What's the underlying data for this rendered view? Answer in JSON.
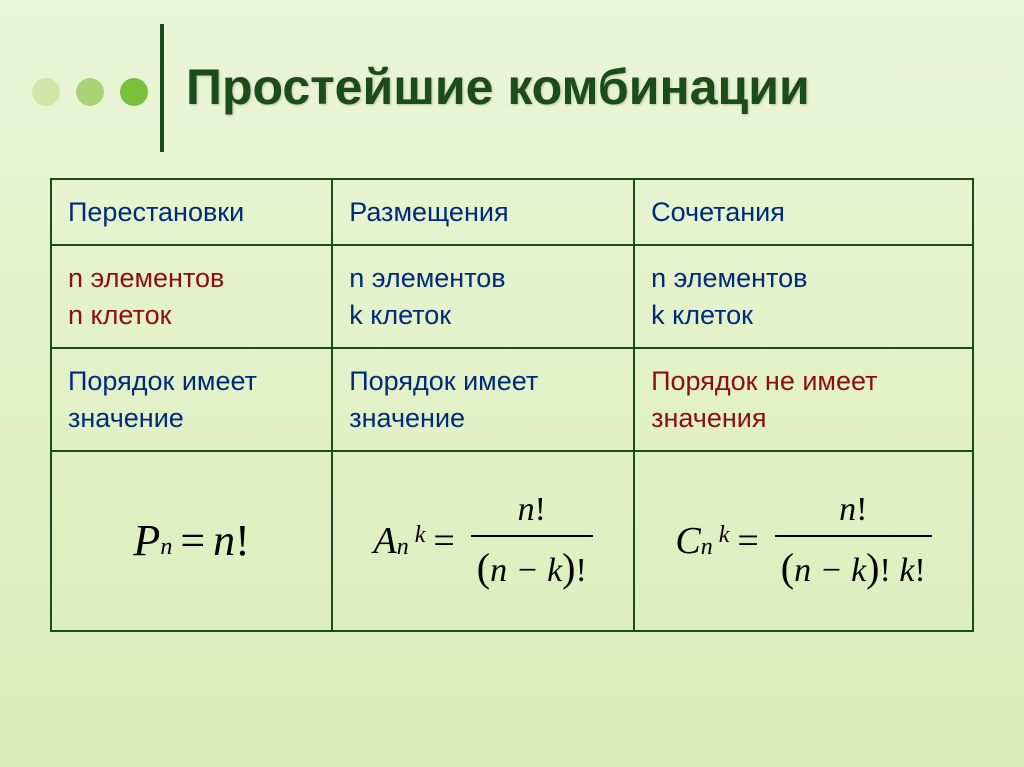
{
  "title": "Простейшие комбинации",
  "dots": {
    "colors": [
      "#cfe6a8",
      "#a9d378",
      "#7abf3e"
    ]
  },
  "table": {
    "border_color": "#1a4d1a",
    "headers": [
      "Перестановки",
      "Размещения",
      "Сочетания"
    ],
    "header_color": "#002a7a",
    "row1": {
      "col1_lines": [
        "n элементов",
        "n клеток"
      ],
      "col1_color": "#8b0f0f",
      "col2_lines": [
        "n элементов",
        "k клеток"
      ],
      "col2_color": "#002a7a",
      "col3_lines": [
        "n элементов",
        "k клеток"
      ],
      "col3_color": "#002a7a"
    },
    "row2": {
      "col1": "Порядок имеет значение",
      "col1_color": "#002a7a",
      "col2": "Порядок имеет значение",
      "col2_color": "#002a7a",
      "col3": "Порядок не имеет значения",
      "col3_color": "#8b0f0f"
    },
    "formulas": {
      "permutation": {
        "symbol": "P",
        "sub": "n",
        "equals": "n!",
        "latex": "P_n = n!"
      },
      "arrangement": {
        "symbol": "A",
        "sub": "n",
        "sup": "k",
        "numerator": "n!",
        "denominator": "(n−k)!",
        "latex": "A_n^k = n! / (n-k)!"
      },
      "combination": {
        "symbol": "C",
        "sub": "n",
        "sup": "k",
        "numerator": "n!",
        "denominator": "(n−k)! k!",
        "latex": "C_n^k = n! / ((n-k)! k!)"
      }
    }
  },
  "colors": {
    "bg_top": "#ebf5d8",
    "bg_bottom": "#d9edb8",
    "title": "#1a4d1a",
    "vline": "#1a4d1a",
    "red": "#8b0f0f",
    "blue": "#002a7a"
  }
}
